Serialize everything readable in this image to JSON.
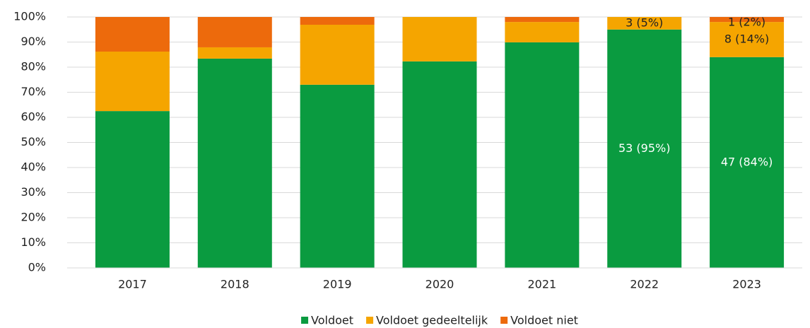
{
  "chart_data": {
    "type": "stacked_bar",
    "categories": [
      "2017",
      "2018",
      "2019",
      "2020",
      "2021",
      "2022",
      "2023"
    ],
    "series": [
      {
        "name": "Voldoet",
        "color": "#0a9b40",
        "values": [
          62.5,
          83.4,
          73.0,
          82.3,
          89.9,
          95,
          84
        ],
        "value_labels": [
          null,
          null,
          null,
          null,
          null,
          "53 (95%)",
          "47 (84%)"
        ]
      },
      {
        "name": "Voldoet gedeeltelijk",
        "color": "#f5a500",
        "values": [
          23.7,
          4.5,
          23.9,
          17.7,
          8.1,
          5,
          14
        ],
        "value_labels": [
          null,
          null,
          null,
          null,
          null,
          "3 (5%)",
          "8 (14%)"
        ]
      },
      {
        "name": "Voldoet niet",
        "color": "#ed6a0c",
        "values": [
          13.8,
          12.1,
          3.1,
          0,
          2.0,
          0,
          2
        ],
        "value_labels": [
          null,
          null,
          null,
          null,
          null,
          null,
          "1 (2%)"
        ]
      }
    ],
    "ylim": [
      0,
      100
    ],
    "yticks": [
      {
        "value": 0,
        "label": "0%"
      },
      {
        "value": 10,
        "label": "10%"
      },
      {
        "value": 20,
        "label": "20%"
      },
      {
        "value": 30,
        "label": "30%"
      },
      {
        "value": 40,
        "label": "40%"
      },
      {
        "value": 50,
        "label": "50%"
      },
      {
        "value": 60,
        "label": "60%"
      },
      {
        "value": 70,
        "label": "70%"
      },
      {
        "value": 80,
        "label": "80%"
      },
      {
        "value": 90,
        "label": "90%"
      },
      {
        "value": 100,
        "label": "100%"
      }
    ],
    "grid": true,
    "legend": "bottom"
  }
}
